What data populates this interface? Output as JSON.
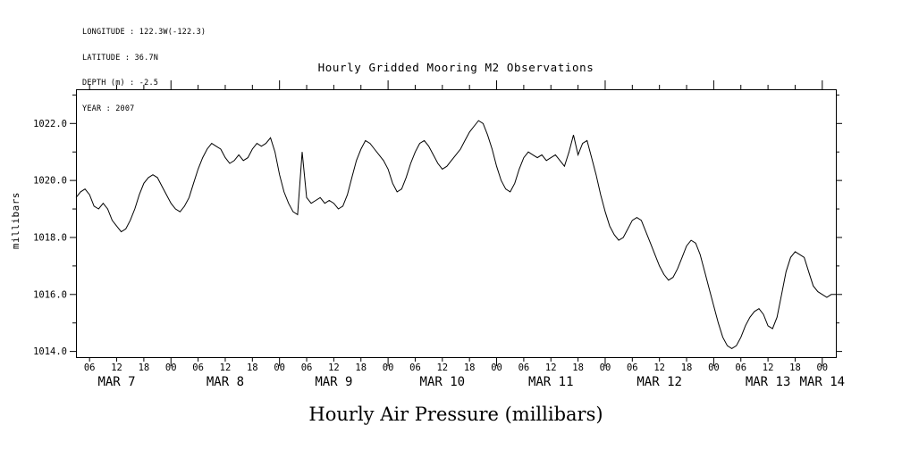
{
  "header": {
    "longitude": "LONGITUDE : 122.3W(-122.3)",
    "latitude": "LATITUDE : 36.7N",
    "depth": "DEPTH (m) : -2.5",
    "year": "YEAR : 2007"
  },
  "chart_data": {
    "type": "line",
    "title": "Hourly Gridded Mooring M2 Observations",
    "xlabel": "Hourly Air Pressure (millibars)",
    "ylabel": "millibars",
    "background": "#ffffff",
    "axis_color": "#000000",
    "line_color": "#000000",
    "grid": false,
    "legend": false,
    "ylim": [
      1013.8,
      1023.2
    ],
    "y_major_ticks": [
      1014.0,
      1016.0,
      1018.0,
      1020.0,
      1022.0
    ],
    "y_tick_labels": [
      "1014.0",
      "1016.0",
      "1018.0",
      "1020.0",
      "1022.0"
    ],
    "x_range_hours": [
      3,
      171
    ],
    "x_tick_interval_hours": 6,
    "x_hour_labels": [
      "06",
      "12",
      "18",
      "00"
    ],
    "day_labels": [
      "MAR  7",
      "MAR  8",
      "MAR  9",
      "MAR 10",
      "MAR 11",
      "MAR 12",
      "MAR 13",
      "MAR 14"
    ],
    "series": [
      {
        "name": "air-pressure",
        "start_hour": 3,
        "hours_per_step": 1,
        "values": [
          1019.4,
          1019.6,
          1019.7,
          1019.5,
          1019.1,
          1019.0,
          1019.2,
          1019.0,
          1018.6,
          1018.4,
          1018.2,
          1018.3,
          1018.6,
          1019.0,
          1019.5,
          1019.9,
          1020.1,
          1020.2,
          1020.1,
          1019.8,
          1019.5,
          1019.2,
          1019.0,
          1018.9,
          1019.1,
          1019.4,
          1019.9,
          1020.4,
          1020.8,
          1021.1,
          1021.3,
          1021.2,
          1021.1,
          1020.8,
          1020.6,
          1020.7,
          1020.9,
          1020.7,
          1020.8,
          1021.1,
          1021.3,
          1021.2,
          1021.3,
          1021.5,
          1021.0,
          1020.2,
          1019.6,
          1019.2,
          1018.9,
          1018.8,
          1021.0,
          1019.4,
          1019.2,
          1019.3,
          1019.4,
          1019.2,
          1019.3,
          1019.2,
          1019.0,
          1019.1,
          1019.5,
          1020.1,
          1020.7,
          1021.1,
          1021.4,
          1021.3,
          1021.1,
          1020.9,
          1020.7,
          1020.4,
          1019.9,
          1019.6,
          1019.7,
          1020.1,
          1020.6,
          1021.0,
          1021.3,
          1021.4,
          1021.2,
          1020.9,
          1020.6,
          1020.4,
          1020.5,
          1020.7,
          1020.9,
          1021.1,
          1021.4,
          1021.7,
          1021.9,
          1022.1,
          1022.0,
          1021.6,
          1021.1,
          1020.5,
          1020.0,
          1019.7,
          1019.6,
          1019.9,
          1020.4,
          1020.8,
          1021.0,
          1020.9,
          1020.8,
          1020.9,
          1020.7,
          1020.8,
          1020.9,
          1020.7,
          1020.5,
          1021.0,
          1021.6,
          1020.9,
          1021.3,
          1021.4,
          1020.8,
          1020.2,
          1019.5,
          1018.9,
          1018.4,
          1018.1,
          1017.9,
          1018.0,
          1018.3,
          1018.6,
          1018.7,
          1018.6,
          1018.2,
          1017.8,
          1017.4,
          1017.0,
          1016.7,
          1016.5,
          1016.6,
          1016.9,
          1017.3,
          1017.7,
          1017.9,
          1017.8,
          1017.4,
          1016.8,
          1016.2,
          1015.6,
          1015.0,
          1014.5,
          1014.2,
          1014.1,
          1014.2,
          1014.5,
          1014.9,
          1015.2,
          1015.4,
          1015.5,
          1015.3,
          1014.9,
          1014.8,
          1015.2,
          1016.0,
          1016.8,
          1017.3,
          1017.5,
          1017.4,
          1017.3,
          1016.8,
          1016.3,
          1016.1,
          1016.0,
          1015.9,
          1016.0,
          1016.0
        ]
      }
    ]
  }
}
